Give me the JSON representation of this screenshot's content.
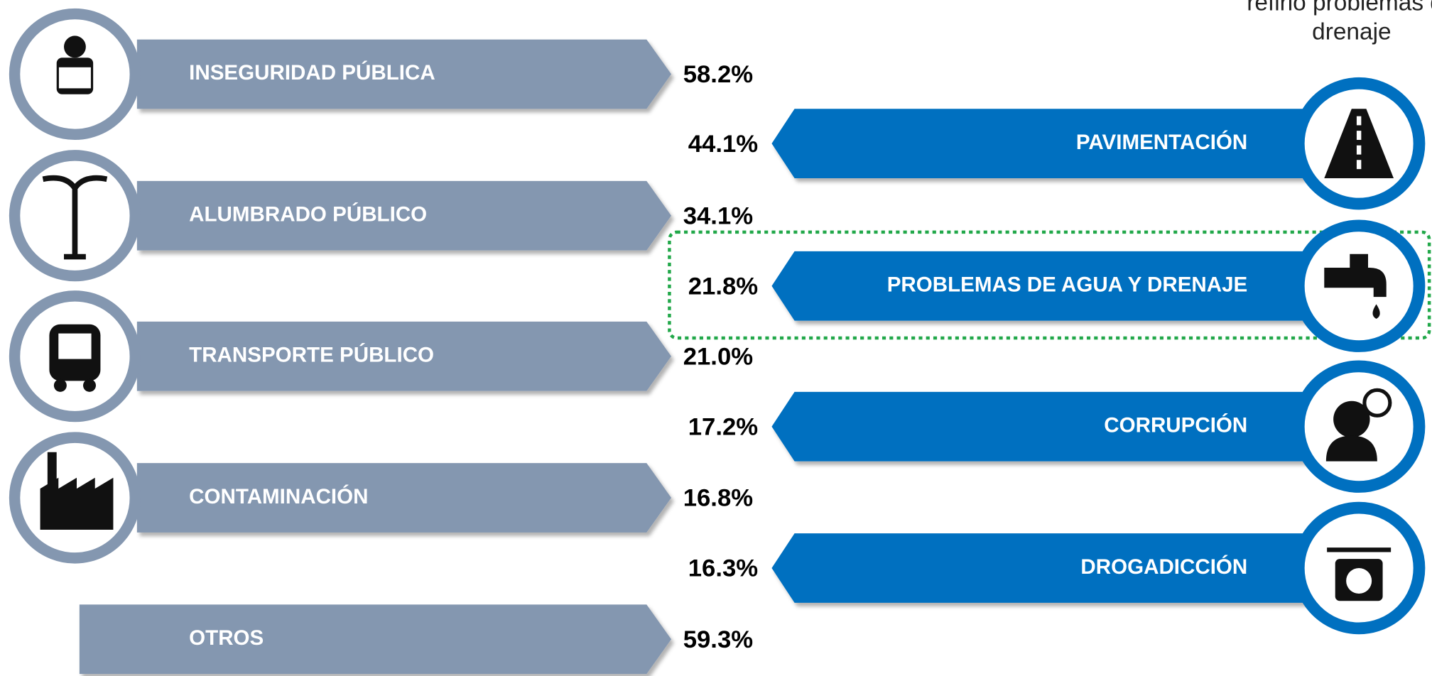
{
  "annotation": {
    "lines": [
      "refirió problemas de",
      "drenaje"
    ]
  },
  "left_items": [
    {
      "label": "INSEGURIDAD PÚBLICA",
      "value": "58.2%"
    },
    {
      "label": "ALUMBRADO PÚBLICO",
      "value": "34.1%"
    },
    {
      "label": "TRANSPORTE PÚBLICO",
      "value": "21.0%"
    },
    {
      "label": "CONTAMINACIÓN",
      "value": "16.8%"
    },
    {
      "label": "OTROS",
      "value": "59.3%"
    }
  ],
  "right_items": [
    {
      "label": "PAVIMENTACIÓN",
      "value": "44.1%"
    },
    {
      "label": "PROBLEMAS DE AGUA Y DRENAJE",
      "value": "21.8%"
    },
    {
      "label": "CORRUPCIÓN",
      "value": "17.2%"
    },
    {
      "label": "DROGADICCIÓN",
      "value": "16.3%"
    }
  ]
}
